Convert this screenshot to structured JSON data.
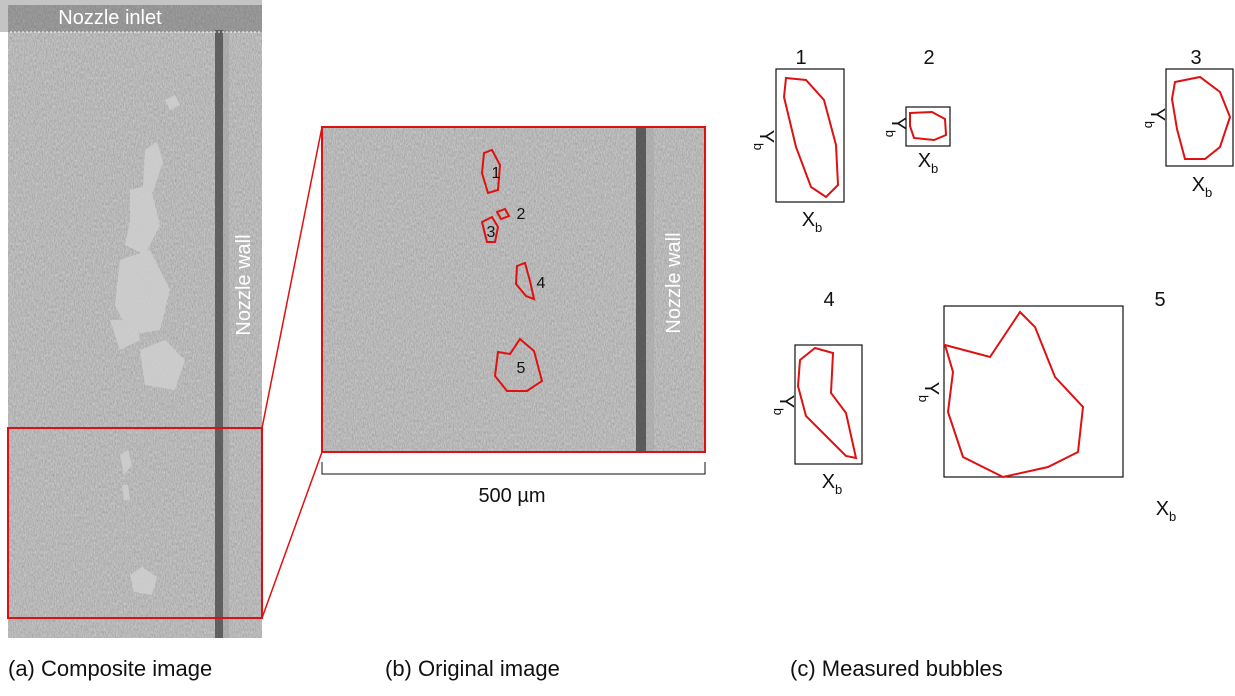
{
  "panel_a": {
    "inlet_label": "Nozzle inlet",
    "wall_label": "Nozzle wall",
    "caption": "(a) Composite image"
  },
  "panel_b": {
    "wall_label": "Nozzle wall",
    "bubble_labels": [
      "1",
      "2",
      "3",
      "4",
      "5"
    ],
    "scale_label": "500 µm",
    "caption": "(b) Original image"
  },
  "panel_c": {
    "caption": "(c) Measured bubbles",
    "bubbles": [
      {
        "number": "1",
        "x_label": "X",
        "x_sub": "b",
        "y_label": "Y",
        "y_sub": "b"
      },
      {
        "number": "2",
        "x_label": "X",
        "x_sub": "b",
        "y_label": "Y",
        "y_sub": "b"
      },
      {
        "number": "3",
        "x_label": "X",
        "x_sub": "b",
        "y_label": "Y",
        "y_sub": "b"
      },
      {
        "number": "4",
        "x_label": "X",
        "x_sub": "b",
        "y_label": "Y",
        "y_sub": "b"
      },
      {
        "number": "5",
        "x_label": "X",
        "x_sub": "b",
        "y_label": "Y",
        "y_sub": "b"
      }
    ]
  }
}
